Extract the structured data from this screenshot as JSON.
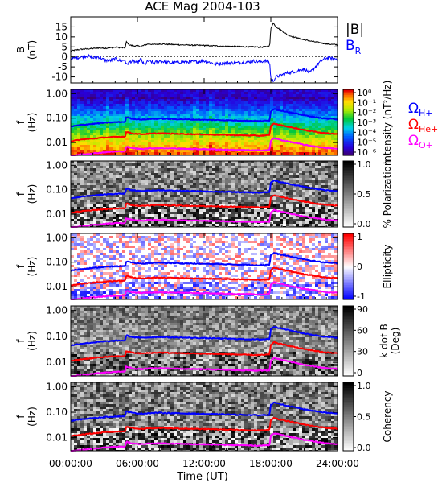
{
  "chart_data": {
    "type": "multi-panel",
    "title": "ACE Mag 2004-103",
    "x_axis": {
      "label": "Time (UT)",
      "range_hours": [
        0,
        24
      ],
      "tick_values_hours": [
        0,
        6,
        12,
        18,
        24
      ],
      "tick_labels": [
        "00:00:00",
        "06:00:00",
        "12:00:00",
        "18:00:00",
        "24:00:00"
      ]
    },
    "panels": [
      {
        "id": "field",
        "type": "line",
        "ylabel_line1": "B",
        "ylabel_line2": "(nT)",
        "ylim": [
          -13,
          20
        ],
        "yticks": [
          -10,
          -5,
          0,
          5,
          10,
          15
        ],
        "ytick_labels": [
          "-10",
          "-5",
          "0",
          "5",
          "10",
          "15"
        ],
        "legend": [
          {
            "text": "|B|",
            "sub": "",
            "color": "#000000"
          },
          {
            "text": "B",
            "sub": "R",
            "color": "#0000ff"
          }
        ],
        "series": [
          {
            "name": "|B|",
            "color": "#000000",
            "x_hours": [
              0,
              0.5,
              1,
              1.5,
              2,
              2.5,
              3,
              3.5,
              4,
              4.5,
              4.9,
              5.0,
              5.3,
              5.6,
              6,
              6.3,
              6.6,
              7,
              7.5,
              8,
              9,
              10,
              11,
              12,
              13,
              14,
              15,
              16,
              16.5,
              17,
              17.5,
              17.9,
              18.0,
              18.2,
              18.5,
              19,
              19.5,
              20,
              21,
              22,
              23,
              24
            ],
            "values": [
              3,
              3.5,
              3.8,
              4,
              4.2,
              4.5,
              4.3,
              4.5,
              4.8,
              4.6,
              4.5,
              7.5,
              6.0,
              5.5,
              5.5,
              5.2,
              5.8,
              6.5,
              6.2,
              6.5,
              6.2,
              6.0,
              5.8,
              5.7,
              5.5,
              5.3,
              5.2,
              5.0,
              5.0,
              4.8,
              5.0,
              5.5,
              14,
              17,
              15,
              13,
              11,
              10,
              8.5,
              7.5,
              6.5,
              6
            ]
          },
          {
            "name": "BR",
            "color": "#0000ff",
            "x_hours": [
              0,
              0.5,
              1,
              1.5,
              2,
              2.5,
              3,
              3.5,
              4,
              4.5,
              4.9,
              5.0,
              5.3,
              5.6,
              6,
              6.3,
              6.6,
              7,
              7.5,
              8,
              9,
              10,
              11,
              12,
              13,
              14,
              15,
              16,
              16.5,
              17,
              17.5,
              17.9,
              18.0,
              18.2,
              18.5,
              19,
              19.5,
              20,
              21,
              21.5,
              22,
              22.5,
              23,
              24
            ],
            "values": [
              -1,
              -0.5,
              0,
              0.5,
              -0.5,
              0,
              -1.5,
              -2,
              -1,
              -2,
              -1.5,
              -4,
              -2.5,
              -2,
              -3,
              -1,
              -4,
              -2,
              -3,
              -2,
              -3,
              -2.5,
              -2.5,
              -2,
              -3.5,
              -3,
              -3,
              -2.5,
              -2,
              -2.5,
              -2,
              -3,
              -11,
              -12,
              -10,
              -9,
              -8,
              -7.5,
              -6,
              -8,
              -5,
              -2,
              -0.5,
              -1
            ]
          }
        ]
      },
      {
        "id": "intensity",
        "type": "heatmap",
        "ylabel_line1": "f",
        "ylabel_line2": "(Hz)",
        "colormap": "rainbow",
        "colorbar_label": "Intensity (nT²/Hz)",
        "colorbar_ticks": [
          "10⁰",
          "10⁻¹",
          "10⁻²",
          "10⁻³",
          "10⁻⁴",
          "10⁻⁵",
          "10⁻⁶"
        ]
      },
      {
        "id": "polarization",
        "type": "heatmap",
        "ylabel_line1": "f",
        "ylabel_line2": "(Hz)",
        "colormap": "grayscale",
        "colorbar_label": "% Polarization",
        "colorbar_ticks": [
          "1.0",
          "0.5",
          "0.0"
        ]
      },
      {
        "id": "ellipticity",
        "type": "heatmap",
        "ylabel_line1": "f",
        "ylabel_line2": "(Hz)",
        "colormap": "blue-white-red",
        "colorbar_label": "Ellipticity",
        "colorbar_ticks": [
          "1",
          "0",
          "-1"
        ]
      },
      {
        "id": "kdotb",
        "type": "heatmap",
        "ylabel_line1": "f",
        "ylabel_line2": "(Hz)",
        "colormap": "grayscale",
        "colorbar_label": "k dot B (Deg)",
        "colorbar_label_line1": "k dot B",
        "colorbar_label_line2": "(Deg)",
        "colorbar_ticks": [
          "90",
          "60",
          "30",
          "0"
        ]
      },
      {
        "id": "coherency",
        "type": "heatmap",
        "ylabel_line1": "f",
        "ylabel_line2": "(Hz)",
        "colormap": "grayscale",
        "colorbar_label": "Coherency",
        "colorbar_ticks": [
          "1.0",
          "0.5",
          "0.0"
        ]
      }
    ],
    "frequency_axis": {
      "scale": "log",
      "range_hz": [
        0.003,
        1.5
      ],
      "tick_values_hz": [
        1.0,
        0.1,
        0.01
      ],
      "tick_labels": [
        "1.00",
        "0.10",
        "0.01"
      ]
    },
    "gyrofrequency_legend": [
      {
        "text": "Ω",
        "sub": "H+",
        "color": "#0000ff"
      },
      {
        "text": "Ω",
        "sub": "He+",
        "color": "#ff0000"
      },
      {
        "text": "Ω",
        "sub": "O+",
        "color": "#ff00ff"
      }
    ],
    "gyrofrequency_curves": [
      {
        "name": "H+",
        "color": "#0000ff",
        "x_hours": [
          0,
          1,
          2,
          3,
          4,
          4.9,
          5.0,
          5.5,
          6,
          6.5,
          7,
          8,
          9,
          10,
          11,
          12,
          13,
          14,
          15,
          16,
          17,
          17.9,
          18.0,
          18.3,
          18.6,
          19,
          20,
          21,
          22,
          23,
          24
        ],
        "values_hz": [
          0.045,
          0.053,
          0.058,
          0.064,
          0.068,
          0.07,
          0.11,
          0.095,
          0.09,
          0.088,
          0.092,
          0.095,
          0.092,
          0.09,
          0.088,
          0.086,
          0.084,
          0.082,
          0.08,
          0.078,
          0.076,
          0.08,
          0.19,
          0.24,
          0.22,
          0.2,
          0.16,
          0.13,
          0.11,
          0.095,
          0.09
        ]
      },
      {
        "name": "He+",
        "color": "#ff0000",
        "x_hours": [
          0,
          1,
          2,
          3,
          4,
          4.9,
          5.0,
          5.5,
          6,
          6.5,
          7,
          8,
          9,
          10,
          11,
          12,
          13,
          14,
          15,
          16,
          17,
          17.9,
          18.0,
          18.3,
          18.6,
          19,
          20,
          21,
          22,
          23,
          24
        ],
        "values_hz": [
          0.0113,
          0.0133,
          0.0145,
          0.016,
          0.017,
          0.0175,
          0.0275,
          0.0238,
          0.0225,
          0.022,
          0.023,
          0.0238,
          0.023,
          0.0225,
          0.022,
          0.0215,
          0.021,
          0.0205,
          0.02,
          0.0195,
          0.019,
          0.02,
          0.0475,
          0.06,
          0.055,
          0.05,
          0.04,
          0.0325,
          0.0275,
          0.0238,
          0.0225
        ]
      },
      {
        "name": "O+",
        "color": "#ff00ff",
        "x_hours": [
          0,
          1,
          2,
          3,
          4,
          4.9,
          5.0,
          5.5,
          6,
          6.5,
          7,
          8,
          9,
          10,
          11,
          12,
          13,
          14,
          15,
          16,
          17,
          17.9,
          18.0,
          18.3,
          18.6,
          19,
          20,
          21,
          22,
          23,
          24
        ],
        "values_hz": [
          0.0028,
          0.0033,
          0.0036,
          0.004,
          0.0043,
          0.0044,
          0.0069,
          0.0059,
          0.0056,
          0.0055,
          0.0058,
          0.0059,
          0.0058,
          0.0056,
          0.0055,
          0.0054,
          0.0053,
          0.0051,
          0.005,
          0.0049,
          0.0048,
          0.005,
          0.0119,
          0.015,
          0.0138,
          0.0125,
          0.01,
          0.0081,
          0.0069,
          0.0059,
          0.0056
        ]
      }
    ]
  }
}
